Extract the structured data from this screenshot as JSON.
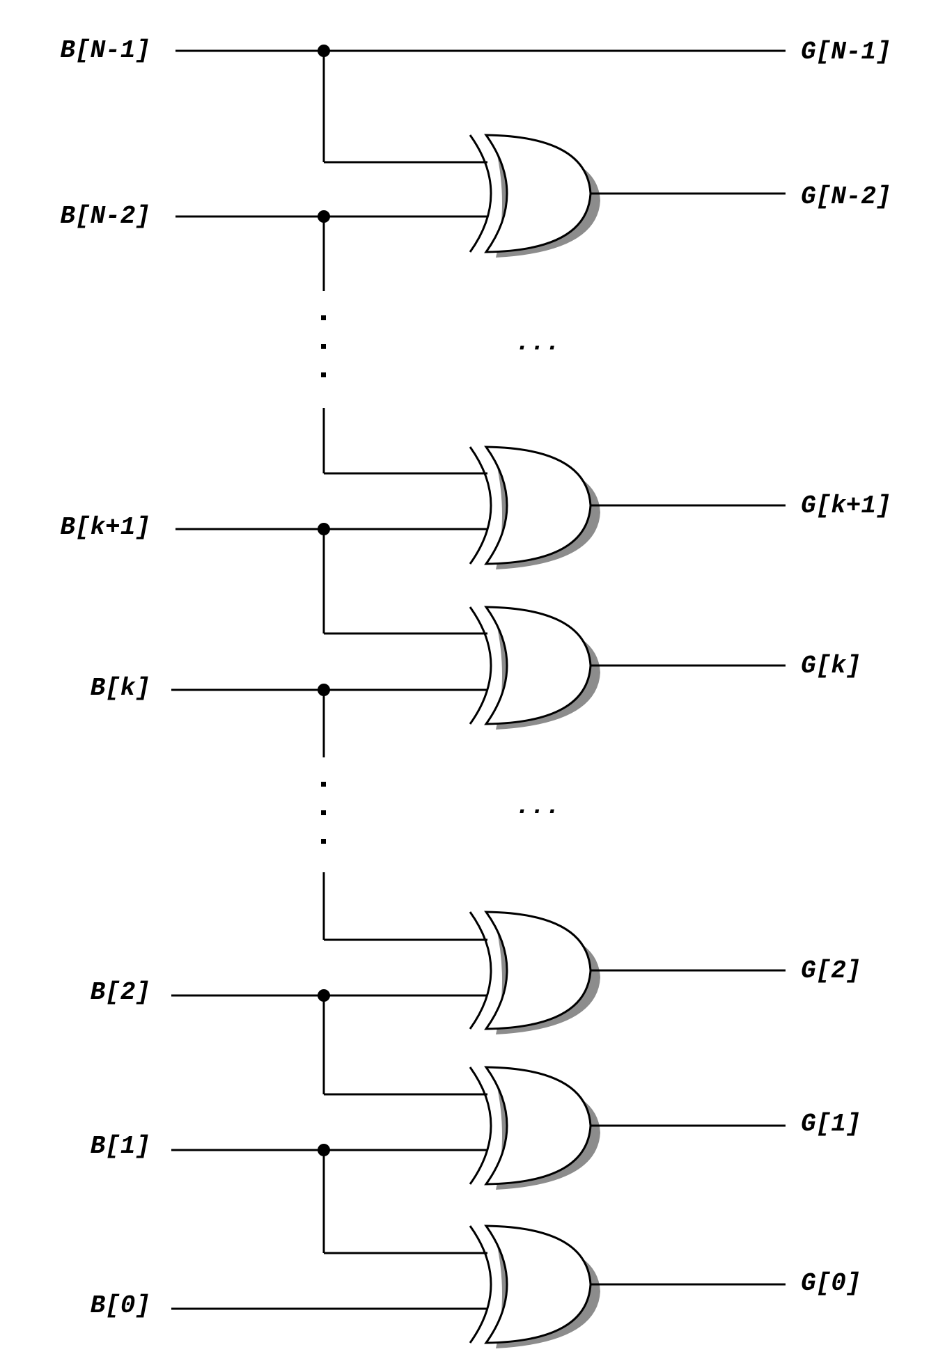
{
  "inputs": [
    "B[N-1]",
    "B[N-2]",
    "B[k+1]",
    "B[k]",
    "B[2]",
    "B[1]",
    "B[0]"
  ],
  "outputs": [
    "G[N-1]",
    "G[N-2]",
    "G[k+1]",
    "G[k]",
    "G[2]",
    "G[1]",
    "G[0]"
  ],
  "ellipsis": "...",
  "gate_type": "XOR"
}
